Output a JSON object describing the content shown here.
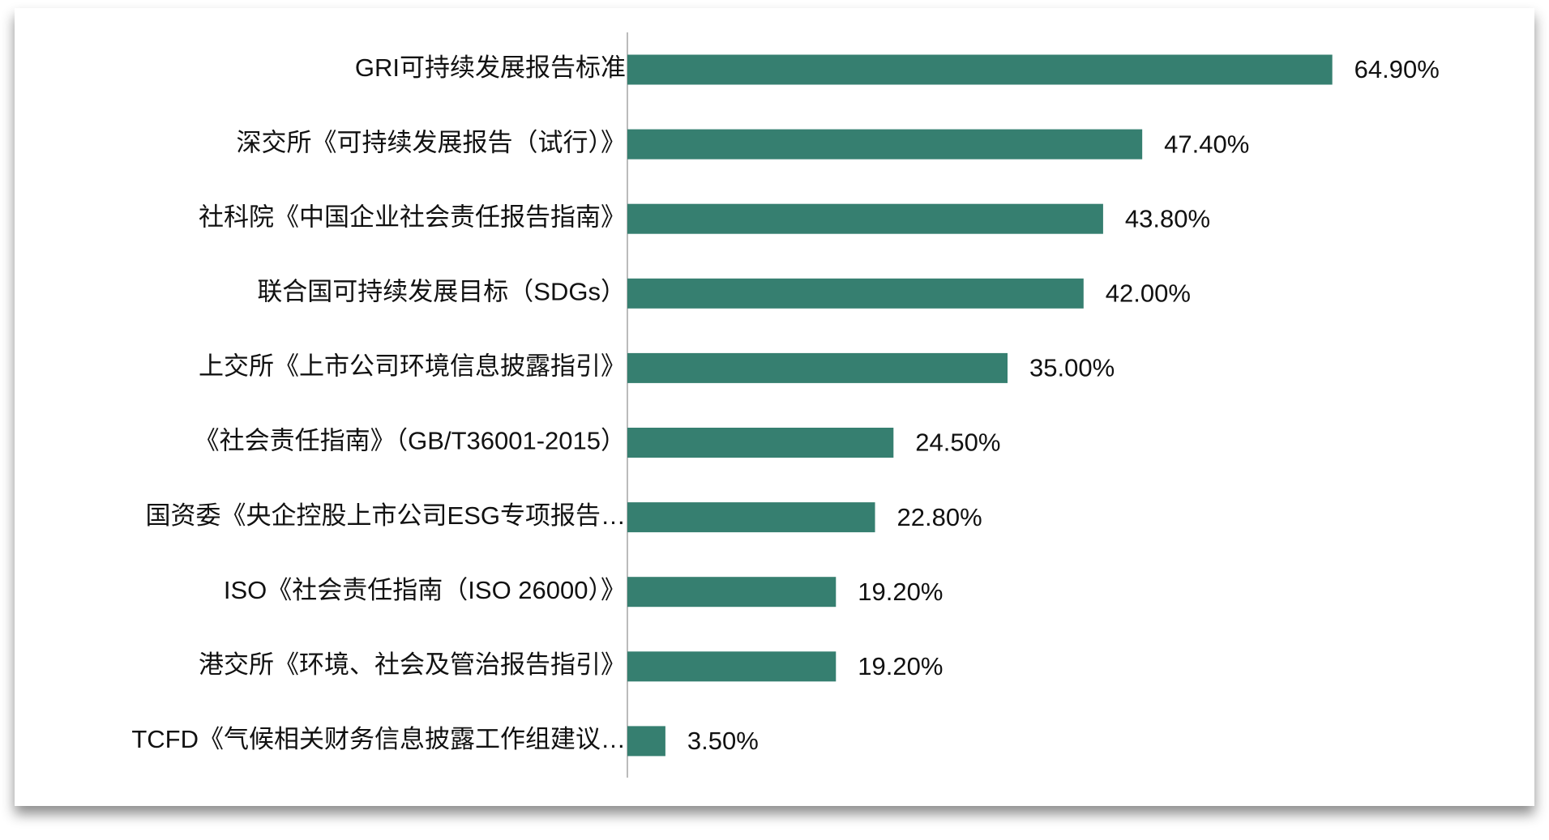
{
  "chart_data": {
    "type": "barh",
    "categories": [
      "GRI可持续发展报告标准",
      "深交所《可持续发展报告（试行）》",
      "社科院《中国企业社会责任报告指南》",
      "联合国可持续发展目标（SDGs）",
      "上交所《上市公司环境信息披露指引》",
      "《社会责任指南》（GB/T36001-2015）",
      "国资委《央企控股上市公司ESG专项报告…",
      "ISO《社会责任指南（ISO 26000）》",
      "港交所《环境、社会及管治报告指引》",
      "TCFD《气候相关财务信息披露工作组建议…"
    ],
    "values": [
      64.9,
      47.4,
      43.8,
      42.0,
      35.0,
      24.5,
      22.8,
      19.2,
      19.2,
      3.5
    ],
    "value_labels": [
      "64.90%",
      "47.40%",
      "43.80%",
      "42.00%",
      "35.00%",
      "24.50%",
      "22.80%",
      "19.20%",
      "19.20%",
      "3.50%"
    ],
    "color": "#367f70"
  }
}
